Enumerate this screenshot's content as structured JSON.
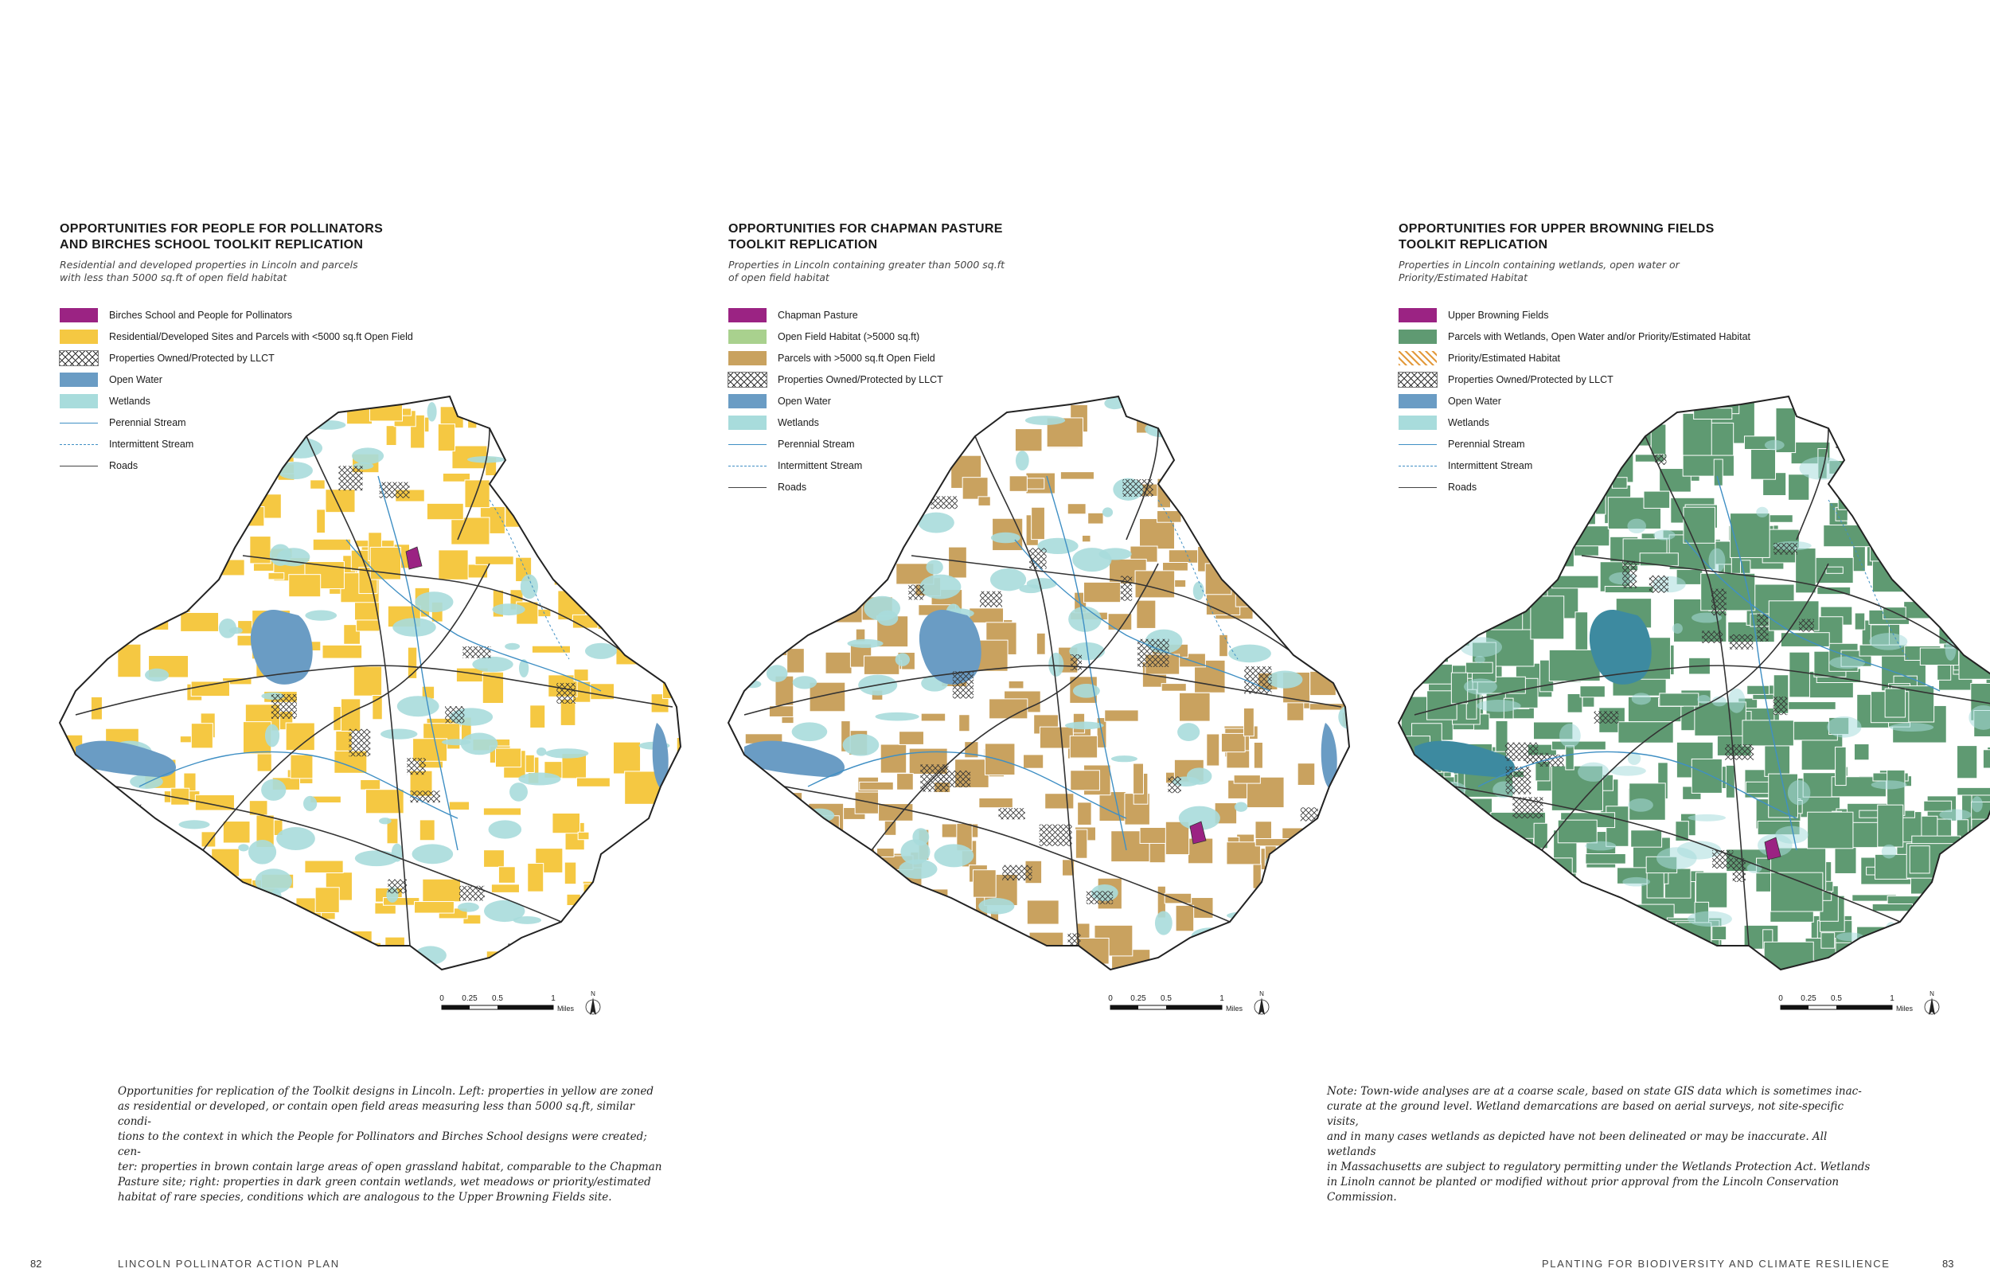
{
  "panels": [
    {
      "title_lines": [
        "OPPORTUNITIES FOR PEOPLE FOR POLLINATORS",
        "AND BIRCHES SCHOOL TOOLKIT REPLICATION"
      ],
      "subtitle_lines": [
        "Residential and developed properties in Lincoln and parcels",
        "with less than 5000 sq.ft of open field habitat"
      ],
      "legend": [
        {
          "label": "Birches School and People for Pollinators",
          "kind": "fill",
          "color": "#9b2383"
        },
        {
          "label": "Residential/Developed Sites and Parcels with <5000 sq.ft Open Field",
          "kind": "fill",
          "color": "#f5c842"
        },
        {
          "label": "Properties Owned/Protected by LLCT",
          "kind": "crosshatch"
        },
        {
          "label": "Open Water",
          "kind": "fill",
          "color": "#6a9cc4"
        },
        {
          "label": "Wetlands",
          "kind": "fill",
          "color": "#a8dcdc"
        },
        {
          "label": "Perennial Stream",
          "kind": "line",
          "color": "#3f8fc4"
        },
        {
          "label": "Intermittent Stream",
          "kind": "dash",
          "color": "#3f8fc4"
        },
        {
          "label": "Roads",
          "kind": "line",
          "color": "#444444"
        }
      ],
      "map_fill": "#f5c842",
      "site_color": "#9b2383"
    },
    {
      "title_lines": [
        "OPPORTUNITIES FOR CHAPMAN PASTURE",
        "TOOLKIT REPLICATION"
      ],
      "subtitle_lines": [
        "Properties in Lincoln containing greater than 5000 sq.ft",
        "of open field habitat"
      ],
      "legend": [
        {
          "label": "Chapman Pasture",
          "kind": "fill",
          "color": "#9b2383"
        },
        {
          "label": "Open Field Habitat (>5000 sq.ft)",
          "kind": "fill",
          "color": "#a9d18e"
        },
        {
          "label": "Parcels with >5000 sq.ft Open Field",
          "kind": "fill",
          "color": "#c9a25f"
        },
        {
          "label": "Properties Owned/Protected by LLCT",
          "kind": "crosshatch"
        },
        {
          "label": "Open Water",
          "kind": "fill",
          "color": "#6a9cc4"
        },
        {
          "label": "Wetlands",
          "kind": "fill",
          "color": "#a8dcdc"
        },
        {
          "label": "Perennial Stream",
          "kind": "line",
          "color": "#3f8fc4"
        },
        {
          "label": "Intermittent Stream",
          "kind": "dash",
          "color": "#3f8fc4"
        },
        {
          "label": "Roads",
          "kind": "line",
          "color": "#444444"
        }
      ],
      "map_fill": "#c9a25f",
      "site_color": "#9b2383"
    },
    {
      "title_lines": [
        "OPPORTUNITIES FOR UPPER BROWNING FIELDS",
        "TOOLKIT REPLICATION"
      ],
      "subtitle_lines": [
        "Properties in Lincoln containing wetlands, open water or",
        "Priority/Estimated Habitat"
      ],
      "legend": [
        {
          "label": "Upper Browning Fields",
          "kind": "fill",
          "color": "#9b2383"
        },
        {
          "label": "Parcels with Wetlands, Open Water and/or Priority/Estimated Habitat",
          "kind": "fill",
          "color": "#5f9a72"
        },
        {
          "label": "Priority/Estimated Habitat",
          "kind": "hatch",
          "color": "#e39a3c"
        },
        {
          "label": "Properties Owned/Protected by LLCT",
          "kind": "crosshatch"
        },
        {
          "label": "Open Water",
          "kind": "fill",
          "color": "#6a9cc4"
        },
        {
          "label": "Wetlands",
          "kind": "fill",
          "color": "#a8dcdc"
        },
        {
          "label": "Perennial Stream",
          "kind": "line",
          "color": "#3f8fc4"
        },
        {
          "label": "Intermittent Stream",
          "kind": "dash",
          "color": "#3f8fc4"
        },
        {
          "label": "Roads",
          "kind": "line",
          "color": "#444444"
        }
      ],
      "map_fill": "#5f9a72",
      "site_color": "#9b2383"
    }
  ],
  "scale_bar": {
    "ticks": [
      "0",
      "0.25",
      "0.5",
      "1"
    ],
    "unit": "Miles",
    "north": "N"
  },
  "captions": {
    "left_lines": [
      "Opportunities for replication of the Toolkit designs in Lincoln. Left: properties in yellow are zoned",
      "as residential or developed, or contain open field areas measuring less than 5000 sq.ft, similar condi-",
      "tions to the context in which the People for Pollinators and Birches School designs were created; cen-",
      "ter: properties in brown contain large areas of open grassland habitat, comparable to the Chapman",
      "Pasture site; right: properties in dark green contain wetlands, wet meadows or priority/estimated",
      "habitat of rare species, conditions which are analogous to the Upper Browning Fields site."
    ],
    "right_lines": [
      "Note: Town-wide analyses are at a coarse scale, based on state GIS data which is sometimes inac-",
      "curate at the ground level. Wetland demarcations are based on aerial surveys, not site-specific visits,",
      "and in many cases wetlands as depicted have not been delineated or may be inaccurate. All wetlands",
      "in Massachusetts are subject to regulatory permitting under the Wetlands Protection Act. Wetlands",
      "in Linoln cannot be planted or modified without prior approval from the Lincoln Conservation",
      "Commission."
    ]
  },
  "footer": {
    "left_page": "82",
    "left_title": "LINCOLN POLLINATOR ACTION PLAN",
    "right_title": "PLANTING FOR BIODIVERSITY AND CLIMATE RESILIENCE",
    "right_page": "83"
  }
}
